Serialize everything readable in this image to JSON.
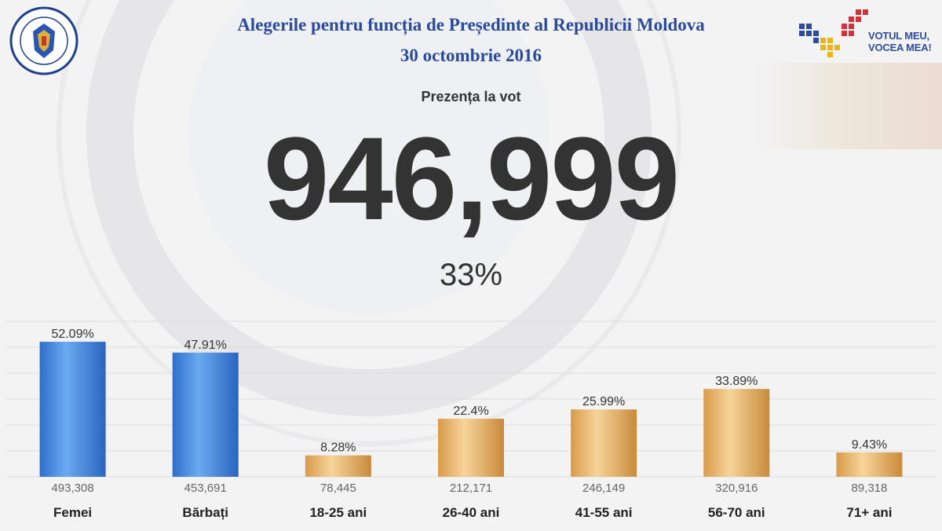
{
  "header": {
    "title_line1": "Alegerile pentru funcția de Președinte al Republicii Moldova",
    "title_line2": "30 octombrie 2016",
    "brand_line1": "VOTUL MEU,",
    "brand_line2": "VOCEA MEA!"
  },
  "turnout": {
    "label": "Prezența la vot",
    "value": "946,999",
    "percent": "33%"
  },
  "colors": {
    "title": "#2a4a9c",
    "bar_gender": "#3d83dc",
    "bar_age": "#e7b36a",
    "text": "#333333"
  },
  "icons": {
    "seal": "cec-seal-icon",
    "brand": "votul-meu-logo-icon"
  },
  "chart_data": {
    "type": "bar",
    "title": "",
    "xlabel": "",
    "ylabel": "",
    "ylim": [
      0,
      60
    ],
    "grid": true,
    "categories": [
      "Femei",
      "Bărbați",
      "18-25 ani",
      "26-40 ani",
      "41-55 ani",
      "56-70 ani",
      "71+ ani"
    ],
    "values": [
      52.09,
      47.91,
      8.28,
      22.4,
      25.99,
      33.89,
      9.43
    ],
    "value_labels": [
      "52.09%",
      "47.91%",
      "8.28%",
      "22.4%",
      "25.99%",
      "33.89%",
      "9.43%"
    ],
    "counts": [
      "493,308",
      "453,691",
      "78,445",
      "212,171",
      "246,149",
      "320,916",
      "89,318"
    ],
    "groups": [
      "gender",
      "gender",
      "age",
      "age",
      "age",
      "age",
      "age"
    ]
  }
}
